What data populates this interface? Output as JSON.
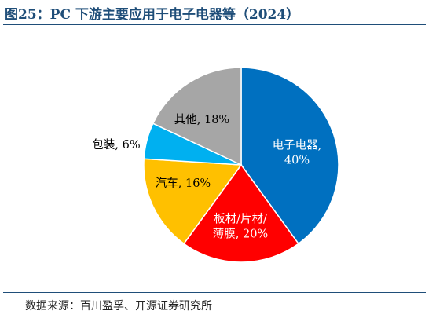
{
  "header": {
    "title": "图25：PC 下游主要应用于电子电器等（2024）"
  },
  "footer": {
    "source": "数据来源：百川盈孚、开源证券研究所"
  },
  "chart_data": {
    "type": "pie",
    "title": "图25：PC 下游主要应用于电子电器等（2024）",
    "slices": [
      {
        "name": "电子电器",
        "value": 40,
        "label_lines": [
          "电子电器,",
          "40%"
        ],
        "color": "#0070c0",
        "label_color": "#ffffff"
      },
      {
        "name": "板材/片材/薄膜",
        "value": 20,
        "label_lines": [
          "板材/片材/",
          "薄膜, 20%"
        ],
        "color": "#ff0000",
        "label_color": "#ffffff"
      },
      {
        "name": "汽车",
        "value": 16,
        "label_lines": [
          "汽车, 16%"
        ],
        "color": "#ffc000",
        "label_color": "#000000"
      },
      {
        "name": "包装",
        "value": 6,
        "label_lines": [
          "包装, 6%"
        ],
        "color": "#00b0f0",
        "label_color": "#000000"
      },
      {
        "name": "其他",
        "value": 18,
        "label_lines": [
          "其他, 18%"
        ],
        "color": "#a6a6a6",
        "label_color": "#000000"
      }
    ],
    "start_angle": "12 o'clock",
    "direction": "clockwise",
    "legend": "none"
  }
}
